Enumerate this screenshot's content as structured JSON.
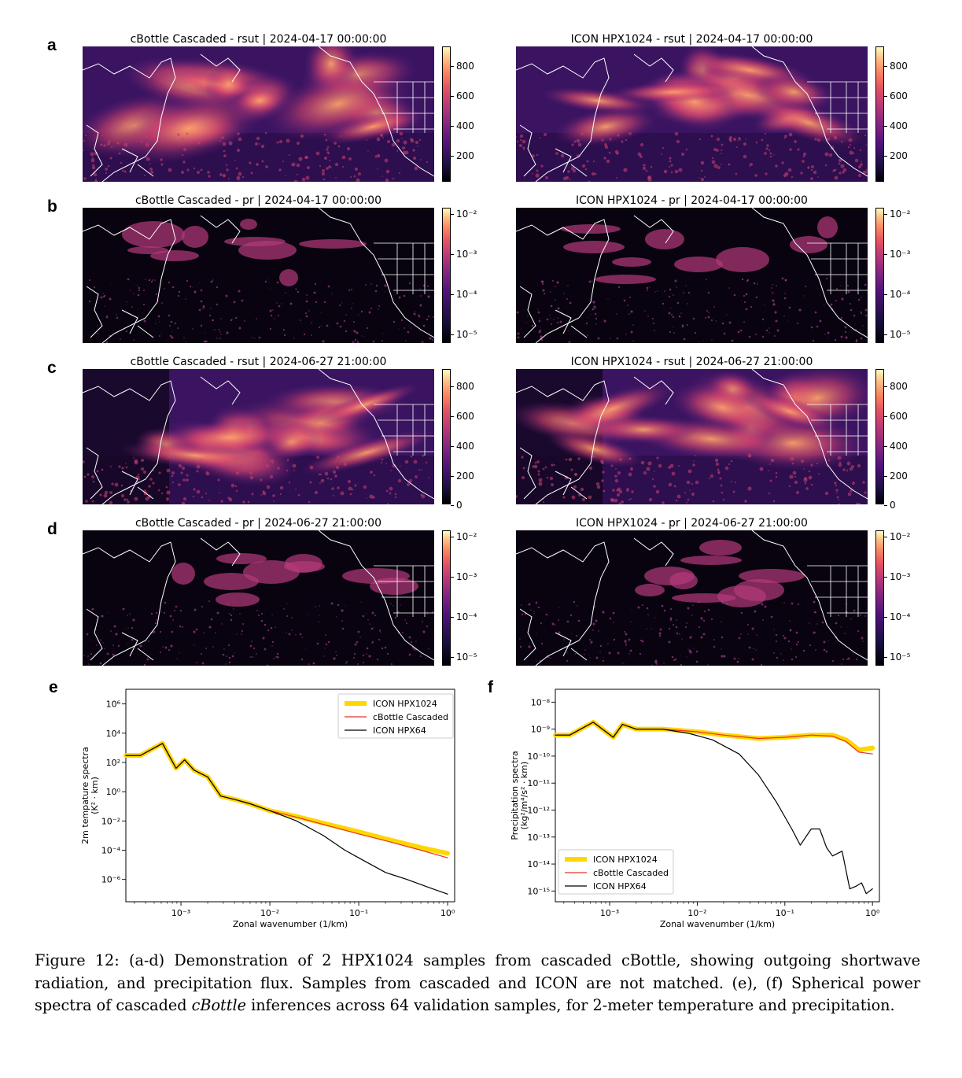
{
  "panels": {
    "a": {
      "label": "a",
      "left_title": "cBottle Cascaded - rsut | 2024-04-17 00:00:00",
      "right_title": "ICON HPX1024 - rsut | 2024-04-17 00:00:00",
      "colorbar": {
        "type": "linear",
        "ticks": [
          "800",
          "600",
          "400",
          "200"
        ]
      }
    },
    "b": {
      "label": "b",
      "left_title": "cBottle Cascaded - pr | 2024-04-17 00:00:00",
      "right_title": "ICON HPX1024 - pr | 2024-04-17 00:00:00",
      "colorbar": {
        "type": "log",
        "ticks": [
          "10⁻²",
          "10⁻³",
          "10⁻⁴",
          "10⁻⁵"
        ]
      }
    },
    "c": {
      "label": "c",
      "left_title": "cBottle Cascaded - rsut | 2024-06-27 21:00:00",
      "right_title": "ICON HPX1024 - rsut | 2024-06-27 21:00:00",
      "colorbar": {
        "type": "linear",
        "ticks": [
          "800",
          "600",
          "400",
          "200",
          "0"
        ]
      }
    },
    "d": {
      "label": "d",
      "left_title": "cBottle Cascaded - pr | 2024-06-27 21:00:00",
      "right_title": "ICON HPX1024 - pr | 2024-06-27 21:00:00",
      "colorbar": {
        "type": "log",
        "ticks": [
          "10⁻²",
          "10⁻³",
          "10⁻⁴",
          "10⁻⁵"
        ]
      }
    }
  },
  "chart_data": [
    {
      "panel": "e",
      "type": "line",
      "xlabel": "Zonal wavenumber (1/km)",
      "ylabel_line1": "2m tempature spectra",
      "ylabel_line2": "(K² · km)",
      "x_scale": "log",
      "y_scale": "log",
      "xlim": [
        0.00024,
        1.2
      ],
      "ylim": [
        3e-08,
        10000000.0
      ],
      "xticks": [
        {
          "v": 0.001,
          "label": "10⁻³"
        },
        {
          "v": 0.01,
          "label": "10⁻²"
        },
        {
          "v": 0.1,
          "label": "10⁻¹"
        },
        {
          "v": 1,
          "label": "10⁰"
        }
      ],
      "yticks": [
        {
          "v": 1000000.0,
          "label": "10⁶"
        },
        {
          "v": 10000.0,
          "label": "10⁴"
        },
        {
          "v": 100,
          "label": "10²"
        },
        {
          "v": 1,
          "label": "10⁰"
        },
        {
          "v": 0.01,
          "label": "10⁻²"
        },
        {
          "v": 0.0001,
          "label": "10⁻⁴"
        },
        {
          "v": 1e-06,
          "label": "10⁻⁶"
        }
      ],
      "legend_position": "top-right",
      "series": [
        {
          "name": "ICON HPX1024",
          "color": "#ffd700",
          "width": 6,
          "x": [
            0.00024,
            0.00035,
            0.00062,
            0.00088,
            0.0011,
            0.0014,
            0.002,
            0.0028,
            0.004,
            0.006,
            0.01,
            0.02,
            0.05,
            0.1,
            0.2,
            0.5,
            1.0
          ],
          "y": [
            300,
            300,
            2000,
            40,
            150,
            30,
            10,
            0.5,
            0.3,
            0.15,
            0.05,
            0.02,
            0.005,
            0.0018,
            0.0006,
            0.00015,
            6e-05
          ]
        },
        {
          "name": "cBottle Cascaded",
          "color": "#e8302a",
          "width": 1.2,
          "x": [
            0.00024,
            0.00035,
            0.00062,
            0.00088,
            0.0011,
            0.0014,
            0.002,
            0.0028,
            0.004,
            0.006,
            0.01,
            0.02,
            0.05,
            0.1,
            0.2,
            0.5,
            1.0
          ],
          "y": [
            300,
            300,
            2000,
            40,
            150,
            30,
            10,
            0.5,
            0.3,
            0.15,
            0.05,
            0.018,
            0.004,
            0.0013,
            0.00045,
            0.0001,
            3e-05
          ]
        },
        {
          "name": "ICON HPX64",
          "color": "#000000",
          "width": 1.2,
          "x": [
            0.00024,
            0.00035,
            0.00062,
            0.00088,
            0.0011,
            0.0014,
            0.002,
            0.0028,
            0.004,
            0.006,
            0.01,
            0.02,
            0.04,
            0.07,
            0.1,
            0.2,
            0.35,
            0.6,
            1.0
          ],
          "y": [
            300,
            300,
            2000,
            40,
            150,
            30,
            10,
            0.5,
            0.3,
            0.15,
            0.05,
            0.01,
            0.001,
            0.0001,
            3e-05,
            3e-06,
            1e-06,
            3e-07,
            1e-07
          ]
        }
      ]
    },
    {
      "panel": "f",
      "type": "line",
      "xlabel": "Zonal wavenumber (1/km)",
      "ylabel_line1": "Precipitation spectra",
      "ylabel_line2": "(kg²/m⁴/s² · km)",
      "x_scale": "log",
      "y_scale": "log",
      "xlim": [
        0.00024,
        1.2
      ],
      "ylim": [
        4e-16,
        3e-08
      ],
      "xticks": [
        {
          "v": 0.001,
          "label": "10⁻³"
        },
        {
          "v": 0.01,
          "label": "10⁻²"
        },
        {
          "v": 0.1,
          "label": "10⁻¹"
        },
        {
          "v": 1,
          "label": "10⁰"
        }
      ],
      "yticks": [
        {
          "v": 1e-08,
          "label": "10⁻⁸"
        },
        {
          "v": 1e-09,
          "label": "10⁻⁹"
        },
        {
          "v": 1e-10,
          "label": "10⁻¹⁰"
        },
        {
          "v": 1e-11,
          "label": "10⁻¹¹"
        },
        {
          "v": 1e-12,
          "label": "10⁻¹²"
        },
        {
          "v": 1e-13,
          "label": "10⁻¹³"
        },
        {
          "v": 1e-14,
          "label": "10⁻¹⁴"
        },
        {
          "v": 1e-15,
          "label": "10⁻¹⁵"
        }
      ],
      "legend_position": "bottom-left",
      "series": [
        {
          "name": "ICON HPX1024",
          "color": "#ffd700",
          "width": 6,
          "x": [
            0.00024,
            0.00035,
            0.00065,
            0.0011,
            0.0014,
            0.002,
            0.004,
            0.01,
            0.02,
            0.05,
            0.1,
            0.2,
            0.35,
            0.5,
            0.7,
            1.0
          ],
          "y": [
            6e-10,
            6e-10,
            1.8e-09,
            5e-10,
            1.5e-09,
            1e-09,
            1e-09,
            8e-10,
            6e-10,
            4.5e-10,
            5e-10,
            6e-10,
            6e-10,
            4e-10,
            1.7e-10,
            2e-10
          ]
        },
        {
          "name": "cBottle Cascaded",
          "color": "#e8302a",
          "width": 1.2,
          "x": [
            0.00024,
            0.00035,
            0.00065,
            0.0011,
            0.0014,
            0.002,
            0.004,
            0.01,
            0.02,
            0.05,
            0.1,
            0.2,
            0.35,
            0.5,
            0.7,
            1.0
          ],
          "y": [
            6e-10,
            6e-10,
            1.8e-09,
            5e-10,
            1.5e-09,
            1e-09,
            1e-09,
            8e-10,
            6e-10,
            4.5e-10,
            5e-10,
            6e-10,
            5.5e-10,
            3.5e-10,
            1.4e-10,
            1.2e-10
          ]
        },
        {
          "name": "ICON HPX64",
          "color": "#000000",
          "width": 1.2,
          "x": [
            0.00024,
            0.00035,
            0.00065,
            0.0011,
            0.0014,
            0.002,
            0.004,
            0.008,
            0.015,
            0.03,
            0.05,
            0.08,
            0.12,
            0.15,
            0.2,
            0.25,
            0.3,
            0.35,
            0.45,
            0.55,
            0.65,
            0.75,
            0.85,
            1.0
          ],
          "y": [
            6e-10,
            6e-10,
            1.8e-09,
            5e-10,
            1.5e-09,
            1e-09,
            1e-09,
            7e-10,
            4e-10,
            1.2e-10,
            2e-11,
            2e-12,
            2e-13,
            5e-14,
            2e-13,
            2e-13,
            4e-14,
            2e-14,
            3e-14,
            1.2e-15,
            1.5e-15,
            2e-15,
            8e-16,
            1.2e-15
          ]
        }
      ]
    }
  ],
  "caption": {
    "part1": "Figure 12: (a-d) Demonstration of 2 HPX1024 samples from cascaded cBottle, showing outgoing shortwave radiation, and precipitation flux.  Samples from cascaded and ICON are not matched.  (e), (f) Spherical power spectra of cascaded ",
    "italic": "cBottle",
    "part2": " inferences across 64 validation samples, for 2-meter temperature and precipitation."
  }
}
